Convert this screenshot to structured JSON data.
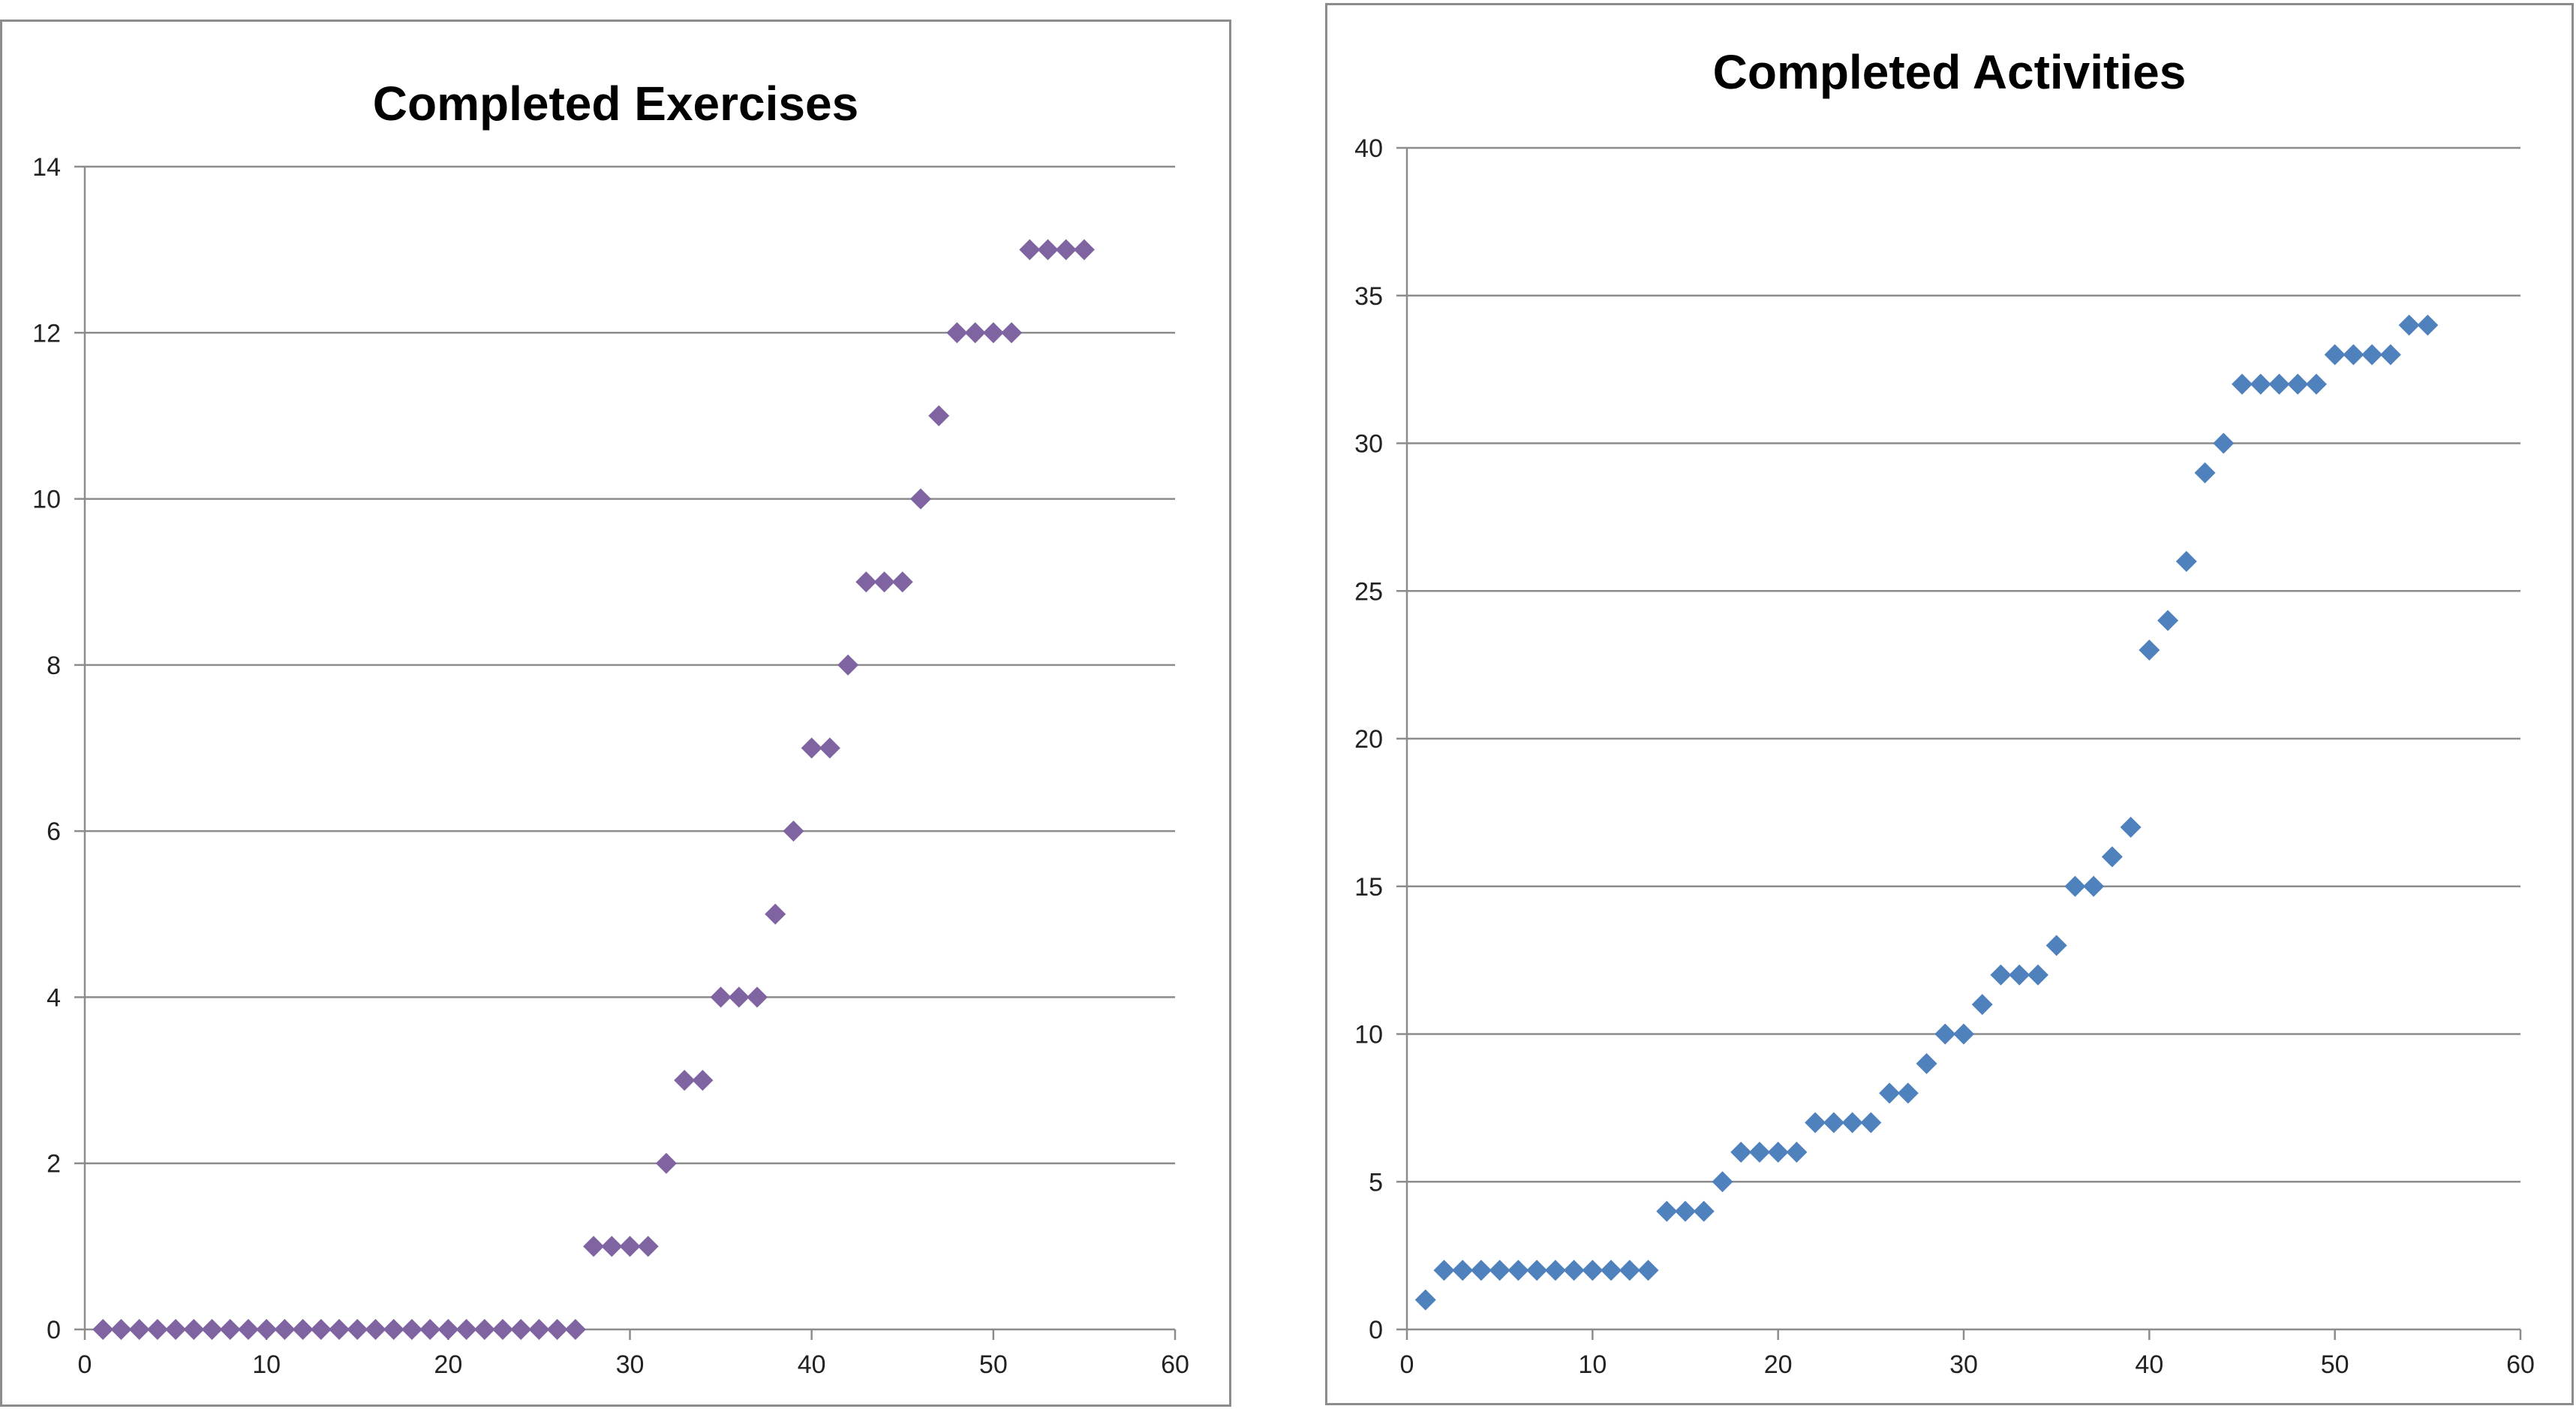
{
  "chart_data": [
    {
      "type": "scatter",
      "title": "Completed Exercises",
      "xlabel": "",
      "ylabel": "",
      "xlim": [
        0,
        60
      ],
      "ylim": [
        0,
        14
      ],
      "xticks": [
        0,
        10,
        20,
        30,
        40,
        50,
        60
      ],
      "yticks": [
        0,
        2,
        4,
        6,
        8,
        10,
        12,
        14
      ],
      "grid": "horizontal",
      "legend": "none",
      "marker": "diamond",
      "color": "#8064a2",
      "series": [
        {
          "x": [
            1,
            2,
            3,
            4,
            5,
            6,
            7,
            8,
            9,
            10,
            11,
            12,
            13,
            14,
            15,
            16,
            17,
            18,
            19,
            20,
            21,
            22,
            23,
            24,
            25,
            26,
            27,
            28,
            29,
            30,
            31,
            32,
            33,
            34,
            35,
            36,
            37,
            38,
            39,
            40,
            41,
            42,
            43,
            44,
            45,
            46,
            47,
            48,
            49,
            50,
            51,
            52,
            53,
            54,
            55
          ],
          "y": [
            0,
            0,
            0,
            0,
            0,
            0,
            0,
            0,
            0,
            0,
            0,
            0,
            0,
            0,
            0,
            0,
            0,
            0,
            0,
            0,
            0,
            0,
            0,
            0,
            0,
            0,
            0,
            1,
            1,
            1,
            1,
            2,
            3,
            3,
            4,
            4,
            4,
            5,
            6,
            7,
            7,
            8,
            9,
            9,
            9,
            10,
            11,
            12,
            12,
            12,
            12,
            13,
            13,
            13,
            13
          ]
        }
      ]
    },
    {
      "type": "scatter",
      "title": "Completed Activities",
      "xlabel": "",
      "ylabel": "",
      "xlim": [
        0,
        60
      ],
      "ylim": [
        0,
        40
      ],
      "xticks": [
        0,
        10,
        20,
        30,
        40,
        50,
        60
      ],
      "yticks": [
        0,
        5,
        10,
        15,
        20,
        25,
        30,
        35,
        40
      ],
      "grid": "horizontal",
      "legend": "none",
      "marker": "diamond",
      "color": "#4f81bd",
      "series": [
        {
          "x": [
            1,
            2,
            3,
            4,
            5,
            6,
            7,
            8,
            9,
            10,
            11,
            12,
            13,
            14,
            15,
            16,
            17,
            18,
            19,
            20,
            21,
            22,
            23,
            24,
            25,
            26,
            27,
            28,
            29,
            30,
            31,
            32,
            33,
            34,
            35,
            36,
            37,
            38,
            39,
            40,
            41,
            42,
            43,
            44,
            45,
            46,
            47,
            48,
            49,
            50,
            51,
            52,
            53,
            54,
            55
          ],
          "y": [
            1,
            2,
            2,
            2,
            2,
            2,
            2,
            2,
            2,
            2,
            2,
            2,
            2,
            4,
            4,
            4,
            5,
            6,
            6,
            6,
            6,
            7,
            7,
            7,
            7,
            8,
            8,
            9,
            10,
            10,
            11,
            12,
            12,
            12,
            13,
            15,
            15,
            16,
            17,
            23,
            24,
            26,
            29,
            30,
            32,
            32,
            32,
            32,
            32,
            33,
            33,
            33,
            33,
            34,
            34
          ]
        }
      ]
    }
  ]
}
